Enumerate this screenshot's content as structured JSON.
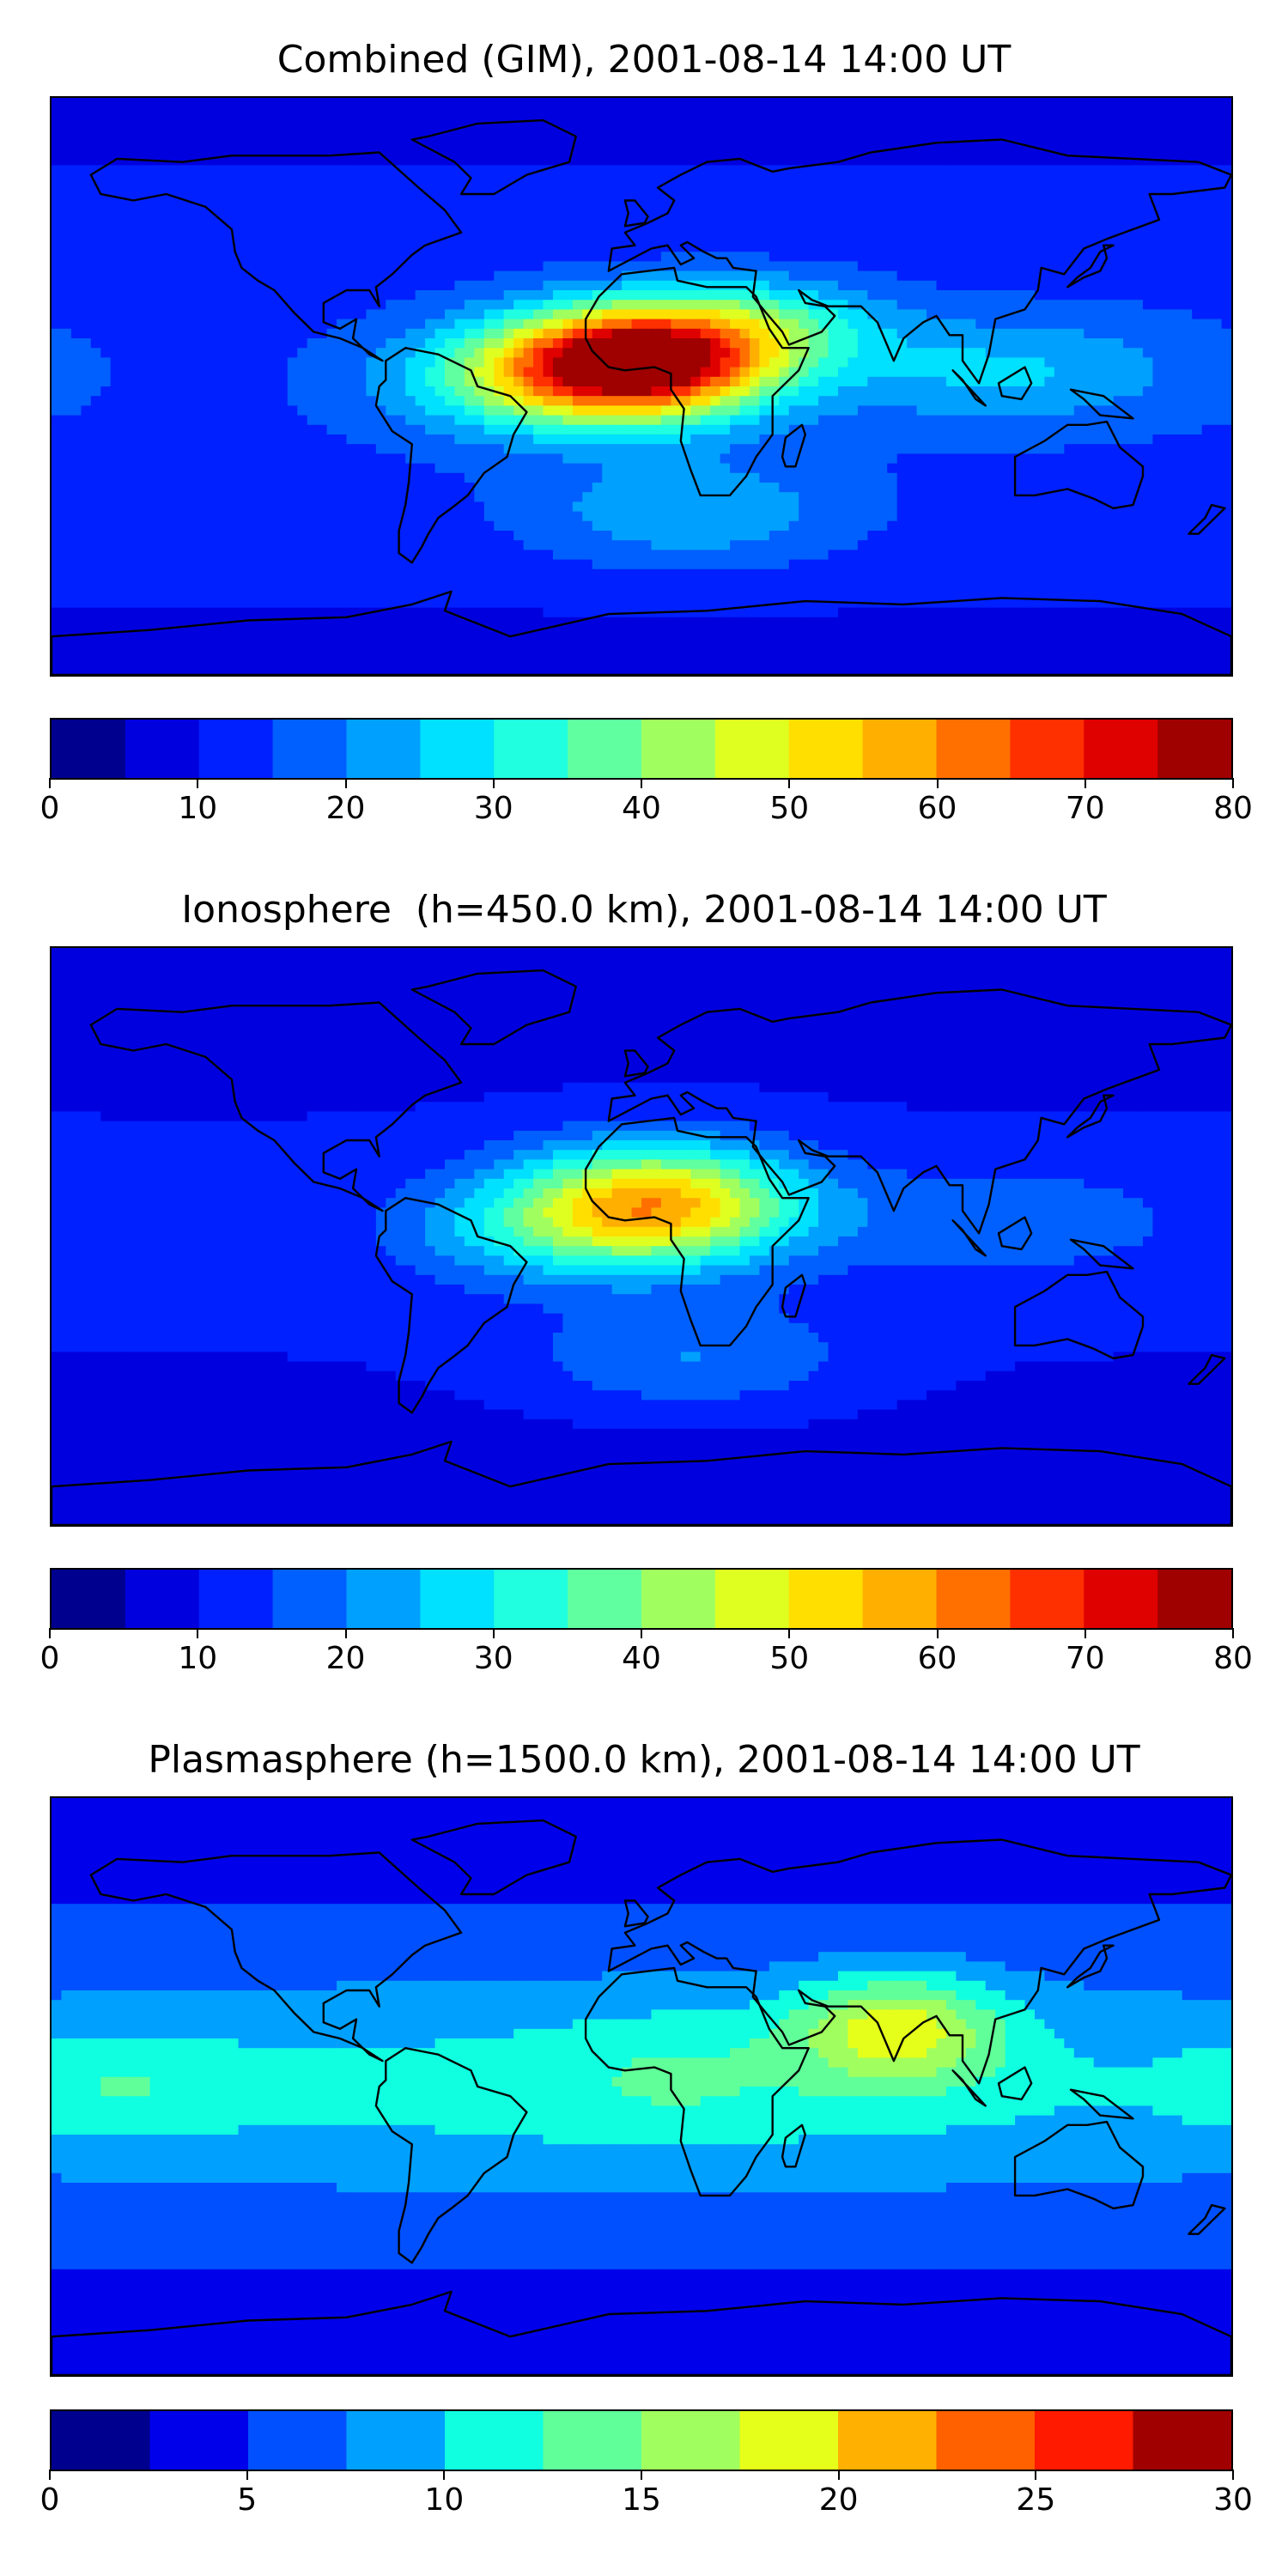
{
  "chart_data": [
    {
      "type": "heatmap",
      "title": "Combined (GIM), 2001-08-14 14:00 UT",
      "xlabel": "",
      "ylabel": "",
      "colorbar": {
        "min": 0,
        "max": 80,
        "step": 5,
        "ticks": [
          0,
          10,
          20,
          30,
          40,
          50,
          60,
          70,
          80
        ],
        "tick_labels": [
          "0",
          "10",
          "20",
          "30",
          "40",
          "50",
          "60",
          "70",
          "80"
        ]
      },
      "blobs": [
        {
          "lon": 0,
          "lat": 8,
          "value": 70,
          "spread_lon": 28,
          "spread_lat": 12
        },
        {
          "lon": -35,
          "lat": 2,
          "value": 20,
          "spread_lon": 30,
          "spread_lat": 12
        },
        {
          "lon": 40,
          "lat": 20,
          "value": 15,
          "spread_lon": 25,
          "spread_lat": 10
        },
        {
          "lon": 15,
          "lat": -40,
          "value": 12,
          "spread_lon": 35,
          "spread_lat": 12
        },
        {
          "lon": 110,
          "lat": 5,
          "value": 12,
          "spread_lon": 40,
          "spread_lat": 12
        }
      ],
      "background": 14
    },
    {
      "type": "heatmap",
      "title": "Ionosphere  (h=450.0 km), 2001-08-14 14:00 UT",
      "xlabel": "",
      "ylabel": "",
      "colorbar": {
        "min": 0,
        "max": 80,
        "step": 5,
        "ticks": [
          0,
          10,
          20,
          30,
          40,
          50,
          60,
          70,
          80
        ],
        "tick_labels": [
          "0",
          "10",
          "20",
          "30",
          "40",
          "50",
          "60",
          "70",
          "80"
        ]
      },
      "blobs": [
        {
          "lon": 5,
          "lat": 10,
          "value": 45,
          "spread_lon": 30,
          "spread_lat": 13
        },
        {
          "lon": -35,
          "lat": 2,
          "value": 12,
          "spread_lon": 30,
          "spread_lat": 12
        },
        {
          "lon": 15,
          "lat": -38,
          "value": 10,
          "spread_lon": 35,
          "spread_lat": 12
        },
        {
          "lon": 110,
          "lat": 5,
          "value": 8,
          "spread_lon": 40,
          "spread_lat": 12
        }
      ],
      "background": 11
    },
    {
      "type": "heatmap",
      "title": "Plasmasphere (h=1500.0 km), 2001-08-14 14:00 UT",
      "xlabel": "",
      "ylabel": "",
      "colorbar": {
        "min": 0,
        "max": 30,
        "step": 2.5,
        "ticks": [
          0,
          5,
          10,
          15,
          20,
          25,
          30
        ],
        "tick_labels": [
          "0",
          "5",
          "10",
          "15",
          "20",
          "25",
          "30"
        ]
      },
      "blobs": [
        {
          "lon": 0,
          "lat": 0,
          "value": 5,
          "spread_lon": 200,
          "spread_lat": 24
        },
        {
          "lon": 78,
          "lat": 18,
          "value": 10,
          "spread_lon": 22,
          "spread_lat": 12
        },
        {
          "lon": -160,
          "lat": 0,
          "value": 3,
          "spread_lon": 25,
          "spread_lat": 12
        },
        {
          "lon": 10,
          "lat": 5,
          "value": 2,
          "spread_lon": 25,
          "spread_lat": 15
        }
      ],
      "background": 6
    }
  ],
  "colormap": [
    "#00008f",
    "#0000df",
    "#0020ff",
    "#0060ff",
    "#00a0ff",
    "#00e0ff",
    "#20ffdf",
    "#60ff9f",
    "#a0ff5f",
    "#dfff20",
    "#ffdf00",
    "#ffaf00",
    "#ff7000",
    "#ff3000",
    "#df0000",
    "#9f0000"
  ],
  "colormap_plasma": [
    "#00008f",
    "#0000ea",
    "#0050ff",
    "#00a0ff",
    "#10ffe0",
    "#60ff9a",
    "#a0ff5f",
    "#e5ff1a",
    "#ffb000",
    "#ff6000",
    "#ff1a00",
    "#a00000"
  ]
}
